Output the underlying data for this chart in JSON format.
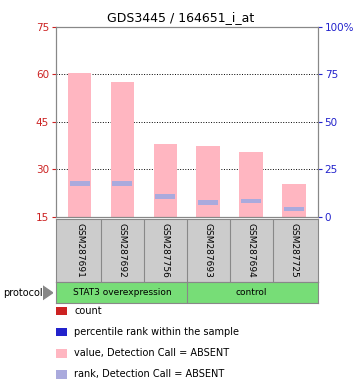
{
  "title": "GDS3445 / 164651_i_at",
  "samples": [
    "GSM287691",
    "GSM287692",
    "GSM287756",
    "GSM287693",
    "GSM287694",
    "GSM287725"
  ],
  "pink_bar_top": [
    60.5,
    57.5,
    38.0,
    37.5,
    35.5,
    25.5
  ],
  "pink_bar_bottom": 15.0,
  "blue_marker_y": [
    25.5,
    25.5,
    21.5,
    19.5,
    20.0,
    17.5
  ],
  "left_ylim": [
    15,
    75
  ],
  "left_yticks": [
    15,
    30,
    45,
    60,
    75
  ],
  "right_ylim": [
    0,
    100
  ],
  "right_yticks": [
    0,
    25,
    50,
    75,
    100
  ],
  "right_yticklabels": [
    "0",
    "25",
    "50",
    "75",
    "100%"
  ],
  "left_ycolor": "#CC2222",
  "right_ycolor": "#2222CC",
  "pink_color": "#FFB6C1",
  "blue_color": "#AAAADD",
  "bar_width": 0.55,
  "bg_color": "#FFFFFF",
  "sample_area_color": "#CCCCCC",
  "group_area_color": "#77DD77",
  "groups": [
    {
      "label": "STAT3 overexpression",
      "start": 0,
      "end": 2
    },
    {
      "label": "control",
      "start": 3,
      "end": 5
    }
  ],
  "legend_items": [
    {
      "label": "count",
      "color": "#CC2222"
    },
    {
      "label": "percentile rank within the sample",
      "color": "#2222CC"
    },
    {
      "label": "value, Detection Call = ABSENT",
      "color": "#FFB6C1"
    },
    {
      "label": "rank, Detection Call = ABSENT",
      "color": "#AAAADD"
    }
  ]
}
